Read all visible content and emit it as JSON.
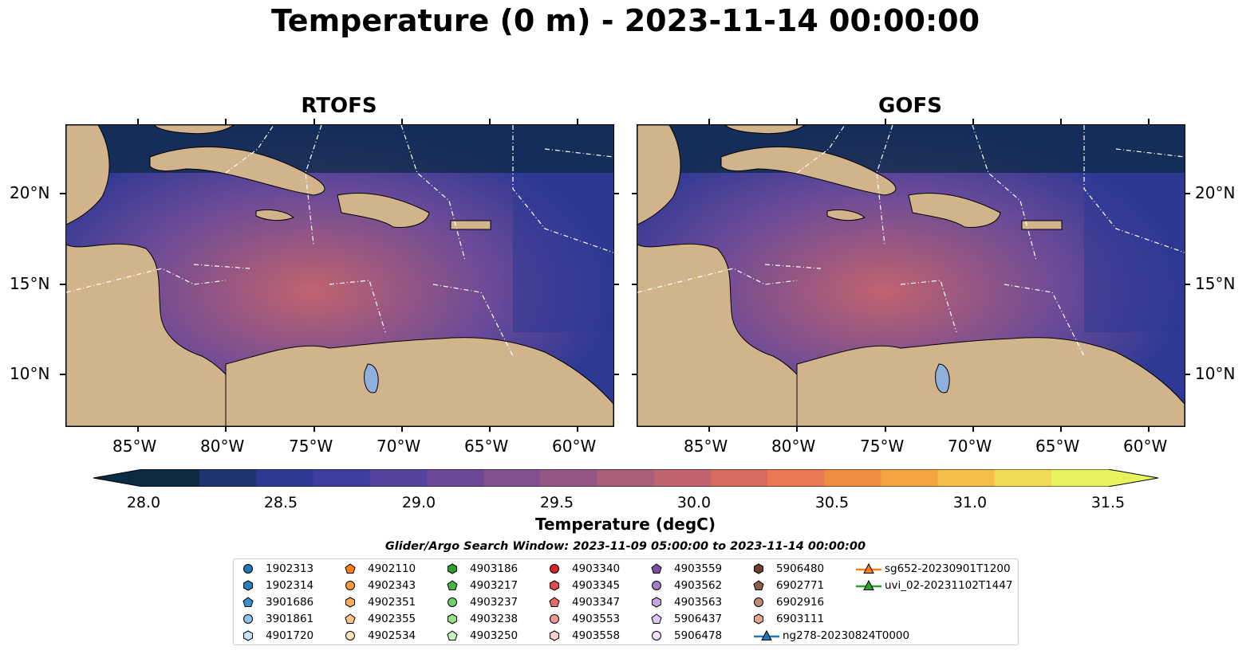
{
  "title": "Temperature (0 m) - 2023-11-14 00:00:00",
  "panels": [
    {
      "title": "RTOFS",
      "id": "rtofs"
    },
    {
      "title": "GOFS",
      "id": "gofs"
    }
  ],
  "lat_labels": [
    "20°N",
    "15°N",
    "10°N"
  ],
  "lon_labels": [
    "85°W",
    "80°W",
    "75°W",
    "70°W",
    "65°W",
    "60°W"
  ],
  "colorbar": {
    "label": "Temperature (degC)",
    "ticks": [
      "28.0",
      "28.5",
      "29.0",
      "29.5",
      "30.0",
      "30.5",
      "31.0",
      "31.5"
    ],
    "min": 28.0,
    "max": 31.5,
    "colors": [
      "#0d2a45",
      "#1f3473",
      "#2e3993",
      "#3d3e9f",
      "#55429e",
      "#6c4899",
      "#82508f",
      "#975784",
      "#ab5e79",
      "#c1636e",
      "#d86a5f",
      "#e7784f",
      "#f08c43",
      "#f6a341",
      "#f7be4a",
      "#f1da55",
      "#e8f25c"
    ]
  },
  "search_window": "Glider/Argo Search Window: 2023-11-09 05:00:00 to 2023-11-14 00:00:00",
  "legend": [
    {
      "label": "1902313",
      "marker": "circle",
      "color": "#1f77b4"
    },
    {
      "label": "1902314",
      "marker": "hexagon",
      "color": "#2a7fbf"
    },
    {
      "label": "3901686",
      "marker": "pentagon",
      "color": "#3a8fd0"
    },
    {
      "label": "3901861",
      "marker": "circle",
      "color": "#8ec3e8"
    },
    {
      "label": "4901720",
      "marker": "hexagon",
      "color": "#c6e3f7"
    },
    {
      "label": "4902110",
      "marker": "pentagon",
      "color": "#ff7f0e"
    },
    {
      "label": "4902343",
      "marker": "circle",
      "color": "#ff9a3c"
    },
    {
      "label": "4902351",
      "marker": "hexagon",
      "color": "#ffad5c"
    },
    {
      "label": "4902355",
      "marker": "pentagon",
      "color": "#ffc38c"
    },
    {
      "label": "4902534",
      "marker": "circle",
      "color": "#ffe0bd"
    },
    {
      "label": "4903186",
      "marker": "hexagon",
      "color": "#2ca02c"
    },
    {
      "label": "4903217",
      "marker": "pentagon",
      "color": "#47b347"
    },
    {
      "label": "4903237",
      "marker": "circle",
      "color": "#6ccf6c"
    },
    {
      "label": "4903238",
      "marker": "hexagon",
      "color": "#98df8a"
    },
    {
      "label": "4903250",
      "marker": "pentagon",
      "color": "#c9f5c0"
    },
    {
      "label": "4903340",
      "marker": "circle",
      "color": "#d62728"
    },
    {
      "label": "4903345",
      "marker": "hexagon",
      "color": "#e04a4b"
    },
    {
      "label": "4903347",
      "marker": "pentagon",
      "color": "#e86a6a"
    },
    {
      "label": "4903553",
      "marker": "circle",
      "color": "#f29898"
    },
    {
      "label": "4903558",
      "marker": "hexagon",
      "color": "#fcd0d0"
    },
    {
      "label": "4903559",
      "marker": "pentagon",
      "color": "#7b4ea3"
    },
    {
      "label": "4903562",
      "marker": "circle",
      "color": "#a57bcb"
    },
    {
      "label": "4903563",
      "marker": "hexagon",
      "color": "#c5a5e2"
    },
    {
      "label": "5906437",
      "marker": "pentagon",
      "color": "#dcc8f5"
    },
    {
      "label": "5906478",
      "marker": "circle",
      "color": "#f1e2ff"
    },
    {
      "label": "5906480",
      "marker": "hexagon",
      "color": "#6b3f31"
    },
    {
      "label": "6902771",
      "marker": "pentagon",
      "color": "#8c5b4a"
    },
    {
      "label": "6902916",
      "marker": "circle",
      "color": "#c08a76"
    },
    {
      "label": "6903111",
      "marker": "hexagon",
      "color": "#e0a890"
    },
    {
      "label": "ng278-20230824T0000",
      "marker": "triangle-line",
      "color": "#1f77b4"
    },
    {
      "label": "sg652-20230901T1200",
      "marker": "triangle-line",
      "color": "#ff7f0e"
    },
    {
      "label": "uvi_02-20231102T1447",
      "marker": "triangle-line",
      "color": "#2ca02c"
    }
  ],
  "colors": {
    "land": "#d2b48c",
    "ocean_mid": "#6a4a98",
    "ocean_cool": "#2e3993",
    "ocean_cold": "#0d2a45",
    "ocean_warm": "#c1636e"
  }
}
